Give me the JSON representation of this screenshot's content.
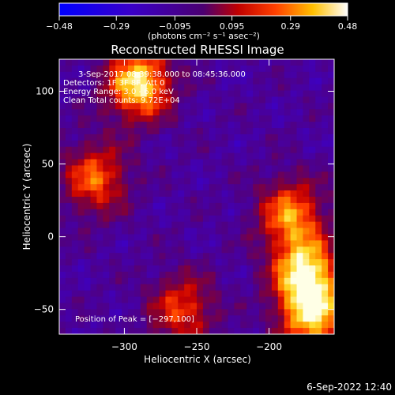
{
  "chart_data": {
    "type": "heatmap",
    "title": "Reconstructed RHESSI Image",
    "xlabel": "Heliocentric X (arcsec)",
    "ylabel": "Heliocentric Y (arcsec)",
    "xlim": [
      -345,
      -155
    ],
    "ylim": [
      -67,
      122
    ],
    "x_ticks": [
      -300,
      -250,
      -200
    ],
    "y_ticks": [
      -50,
      0,
      50,
      100
    ],
    "x_tick_labels": [
      "−300",
      "−250",
      "−200"
    ],
    "y_tick_labels": [
      "−50",
      "0",
      "50",
      "100"
    ],
    "colorbar": {
      "range": [
        -0.48,
        0.48
      ],
      "ticks": [
        -0.48,
        -0.29,
        -0.095,
        0.095,
        0.29,
        0.48
      ],
      "tick_labels": [
        "−0.48",
        "−0.29",
        "−0.095",
        "0.095",
        "0.29",
        "0.48"
      ],
      "units_label": "(photons cm⁻² s⁻¹ asec⁻²)"
    },
    "annotations": {
      "time_range": "3-Sep-2017 08:39:38.000 to 08:45:36.000",
      "detectors": "Detectors: 1F 3F 8F, Att 0",
      "energy": "Energy Range: 3.0 - 6.0 keV",
      "algorithm": "Clean    Total counts: 9.72E+04",
      "peak": "Position of Peak = [−297,100]"
    },
    "sources": [
      {
        "x": -290,
        "y": 105,
        "level": 0.46
      },
      {
        "x": -175,
        "y": -25,
        "level": 0.44
      },
      {
        "x": -320,
        "y": 40,
        "level": 0.25
      },
      {
        "x": -185,
        "y": 15,
        "level": 0.3
      },
      {
        "x": -260,
        "y": -50,
        "level": 0.2
      },
      {
        "x": -170,
        "y": -55,
        "level": 0.38
      }
    ]
  },
  "footer_date": "6-Sep-2022 12:40"
}
